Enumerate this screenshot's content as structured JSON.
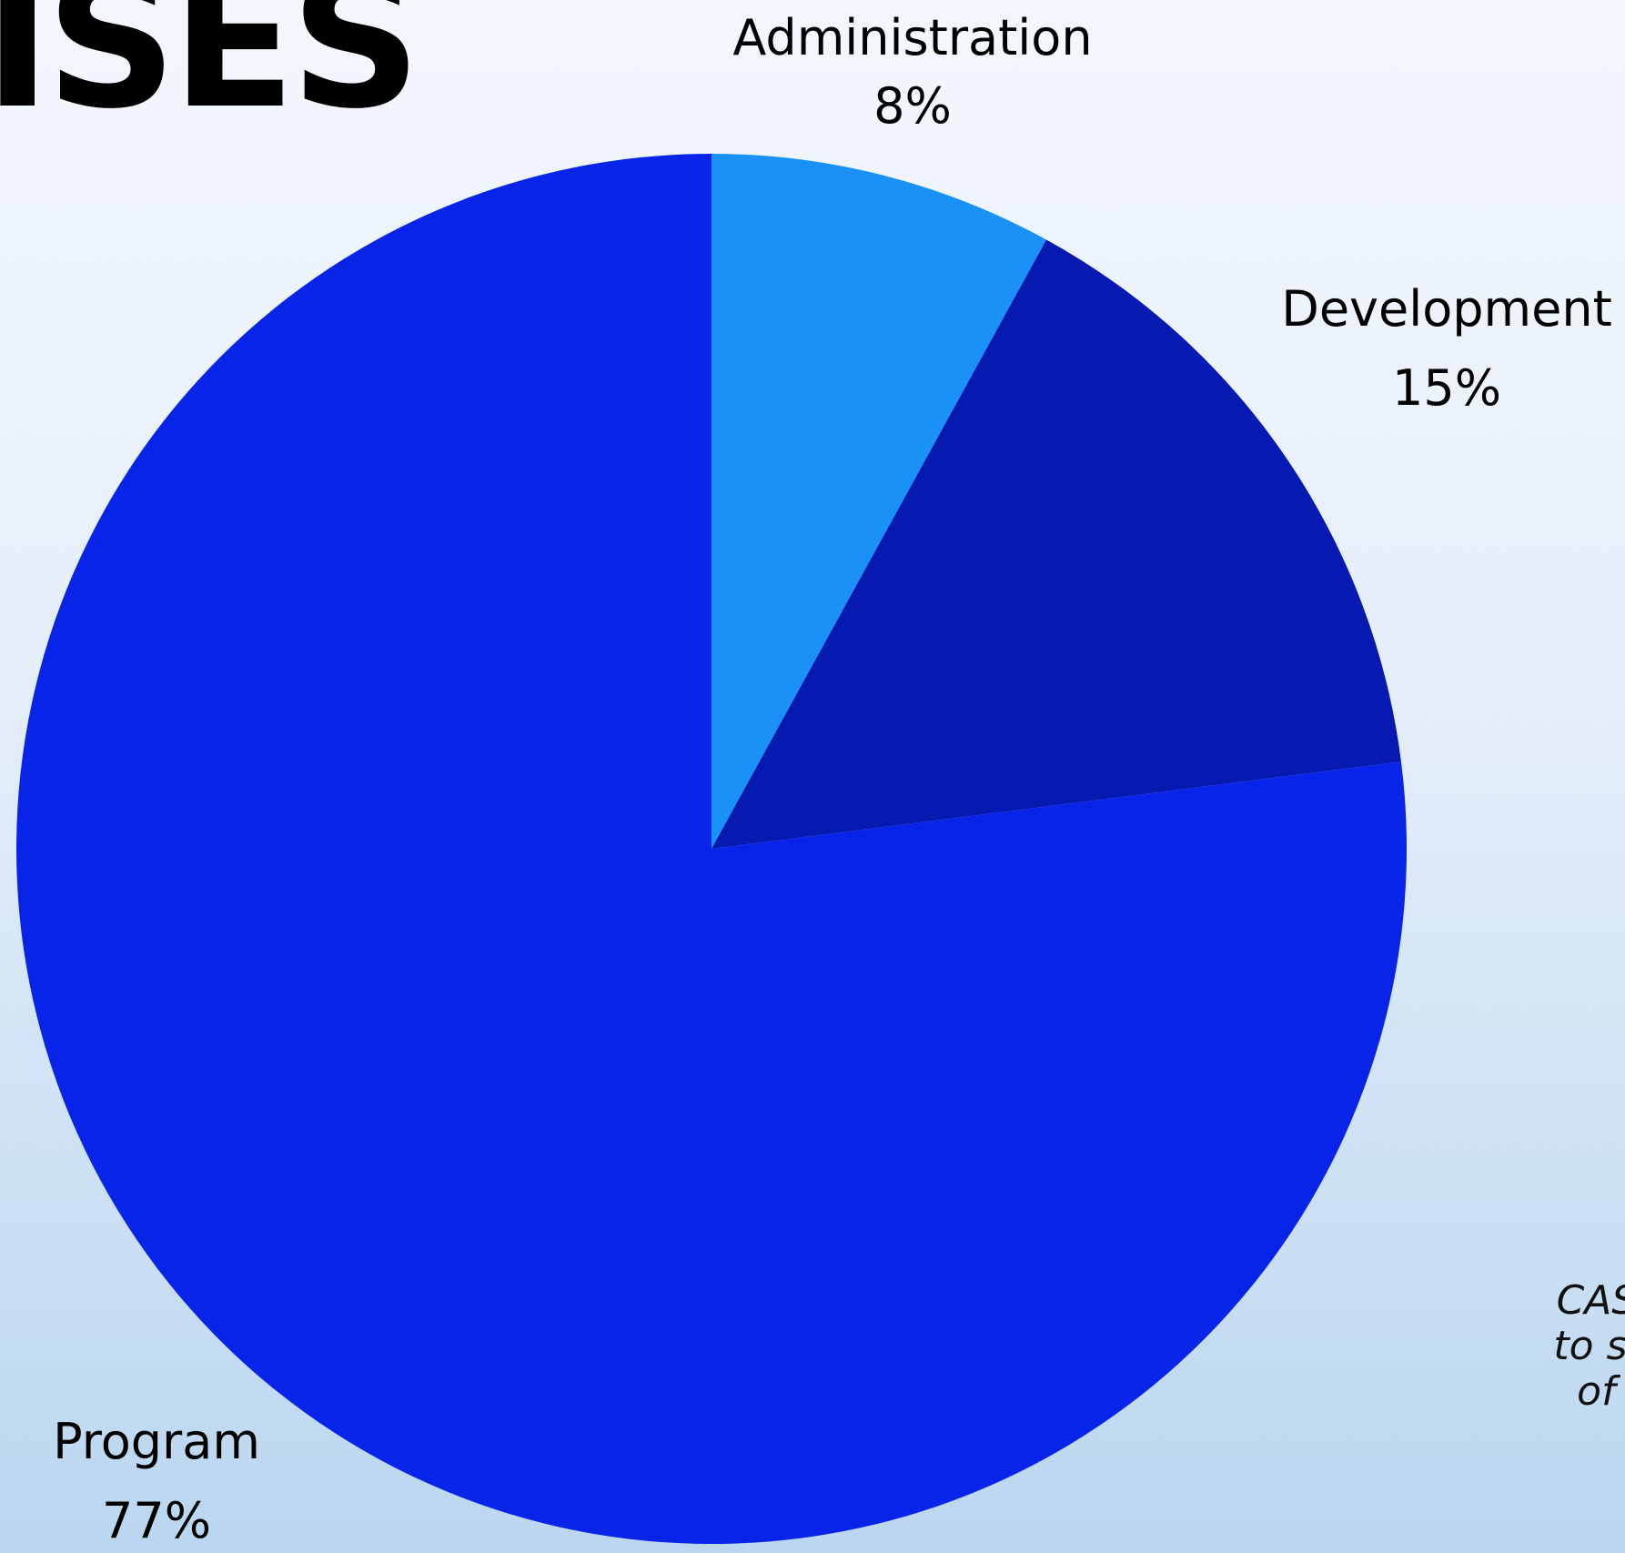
{
  "page": {
    "title": "ISES",
    "note_lines": [
      "CASA",
      "to sta",
      "of t"
    ]
  },
  "chart_data": {
    "type": "pie",
    "title": "",
    "start_angle_deg": 0,
    "direction": "clockwise",
    "slices": [
      {
        "label": "Administration",
        "display": "8%",
        "value": 8,
        "color": "#1991f6"
      },
      {
        "label": "Development",
        "display": "15%",
        "value": 15,
        "color": "#0619b0"
      },
      {
        "label": "Program",
        "display": "77%",
        "value": 77,
        "color": "#0824e8"
      }
    ]
  }
}
